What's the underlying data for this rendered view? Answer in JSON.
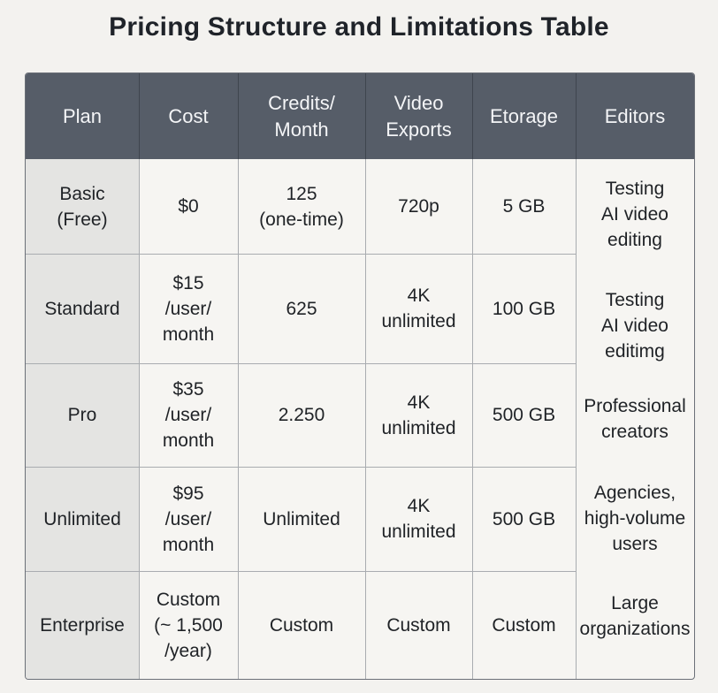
{
  "title": "Pricing Structure and Limitations Table",
  "headers": {
    "plan": "Plan",
    "cost": "Cost",
    "credits": "Credits/\nMonth",
    "exports": "Video\nExports",
    "storage": "Etorage",
    "editors": "Editors"
  },
  "rows": [
    {
      "plan": "Basic\n(Free)",
      "cost": "$0",
      "credits": "125\n(one-time)",
      "exports": "720p",
      "storage": "5 GB",
      "editors": "Testing\nAI video\nediting"
    },
    {
      "plan": "Standard",
      "cost": "$15\n/user/\nmonth",
      "credits": "625",
      "exports": "4K\nunlimited",
      "storage": "100 GB",
      "editors": "Testing\nAI video\neditimg"
    },
    {
      "plan": "Pro",
      "cost": "$35\n/user/\nmonth",
      "credits": "2.250",
      "exports": "4K\nunlimited",
      "storage": "500 GB",
      "editors": "Professional\ncreators"
    },
    {
      "plan": "Unlimited",
      "cost": "$95\n/user/\nmonth",
      "credits": "Unlimited",
      "exports": "4K\nunlimited",
      "storage": "500 GB",
      "editors": "Agencies,\nhigh-volume\nusers"
    },
    {
      "plan": "Enterprise",
      "cost": "Custom\n(~ 1,500\n/year)",
      "credits": "Custom",
      "exports": "Custom",
      "storage": "Custom",
      "editors": "Large\norganizations"
    }
  ]
}
